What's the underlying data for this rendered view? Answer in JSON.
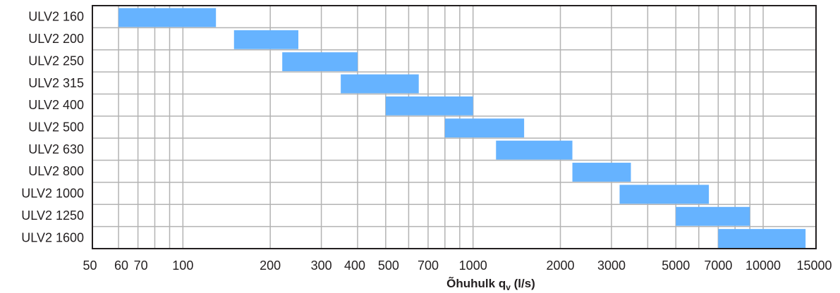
{
  "chart_data": {
    "type": "bar",
    "orientation": "horizontal",
    "subtype": "floating-range",
    "x_scale": "log",
    "xlim": [
      50,
      15000
    ],
    "grid": true,
    "xlabel": {
      "main": "Õhuhulk q",
      "subscript": "v",
      "unit": " (l/s)"
    },
    "xticks": [
      {
        "value": 50,
        "label": "50"
      },
      {
        "value": 60,
        "label": "60"
      },
      {
        "value": 70,
        "label": "70"
      },
      {
        "value": 100,
        "label": "100"
      },
      {
        "value": 200,
        "label": "200"
      },
      {
        "value": 300,
        "label": "300"
      },
      {
        "value": 400,
        "label": "400"
      },
      {
        "value": 500,
        "label": "500"
      },
      {
        "value": 700,
        "label": "700"
      },
      {
        "value": 1000,
        "label": "1000"
      },
      {
        "value": 2000,
        "label": "2000"
      },
      {
        "value": 3000,
        "label": "3000"
      },
      {
        "value": 5000,
        "label": "5000"
      },
      {
        "value": 7000,
        "label": "7000"
      },
      {
        "value": 10000,
        "label": "10000"
      },
      {
        "value": 15000,
        "label": "15000"
      }
    ],
    "gridlines_x": [
      60,
      70,
      80,
      90,
      100,
      200,
      300,
      400,
      500,
      600,
      700,
      800,
      900,
      1000,
      2000,
      3000,
      4000,
      5000,
      6000,
      7000,
      8000,
      9000,
      10000
    ],
    "categories": [
      "ULV2 160",
      "ULV2 200",
      "ULV2 250",
      "ULV2 315",
      "ULV2 400",
      "ULV2 500",
      "ULV2 630",
      "ULV2 800",
      "ULV2 1000",
      "ULV2 1250",
      "ULV2 1600"
    ],
    "ranges": [
      [
        60,
        130
      ],
      [
        150,
        250
      ],
      [
        220,
        400
      ],
      [
        350,
        650
      ],
      [
        500,
        1000
      ],
      [
        800,
        1500
      ],
      [
        1200,
        2200
      ],
      [
        2200,
        3500
      ],
      [
        3200,
        6500
      ],
      [
        5000,
        9000
      ],
      [
        7000,
        14000
      ]
    ],
    "colors": {
      "bar": "#66b3ff",
      "grid": "#b3b3b3",
      "frame": "#231f20",
      "text": "#231f20"
    }
  }
}
